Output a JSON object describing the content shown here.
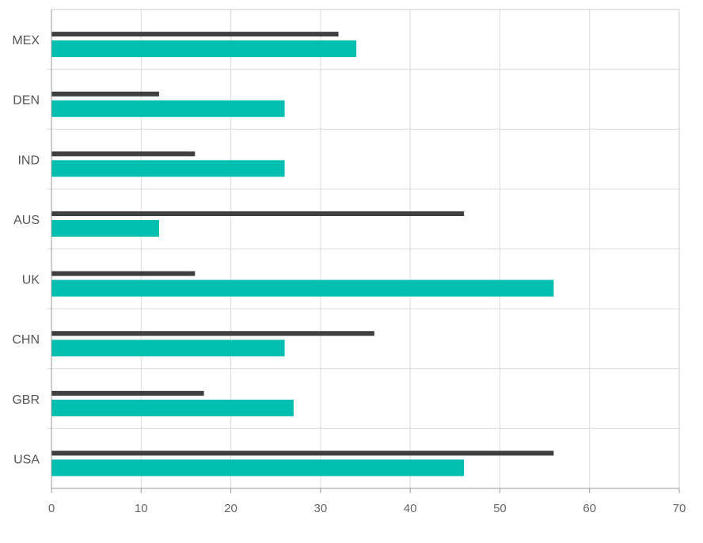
{
  "chart_data": {
    "type": "bar",
    "orientation": "horizontal",
    "categories": [
      "USA",
      "GBR",
      "CHN",
      "UK",
      "AUS",
      "IND",
      "DEN",
      "MEX"
    ],
    "series": [
      {
        "values": [
          46,
          27,
          26,
          56,
          12,
          26,
          26,
          34
        ],
        "color": "#00bfb0"
      },
      {
        "values": [
          56,
          17,
          36,
          16,
          46,
          16,
          12,
          32
        ],
        "color": "#3f3f3f"
      }
    ],
    "x_ticks": [
      0,
      10,
      20,
      30,
      40,
      50,
      60,
      70
    ],
    "xlim": [
      0,
      70
    ],
    "title": "",
    "xlabel": "",
    "ylabel": "",
    "grid": true,
    "legend": "none"
  }
}
